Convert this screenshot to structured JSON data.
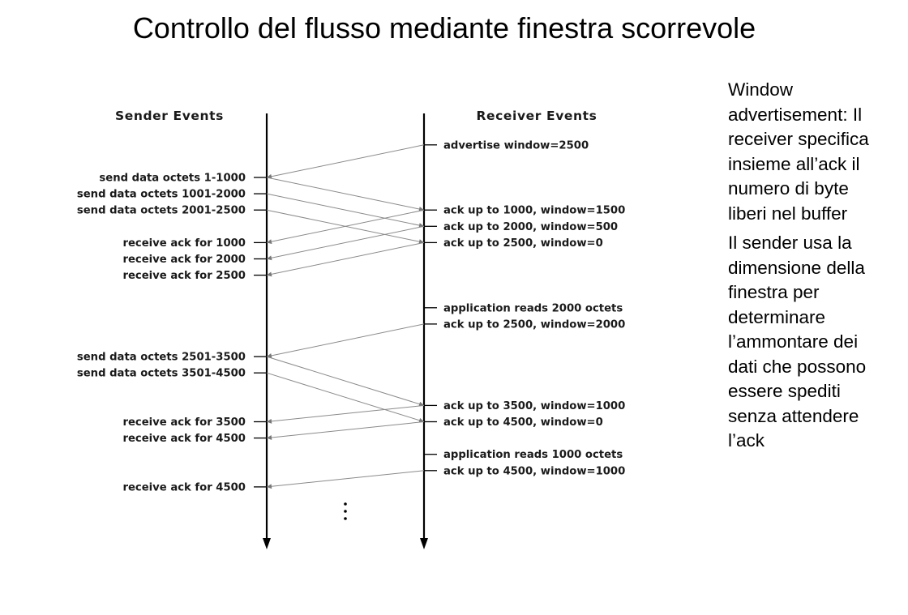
{
  "title": "Controllo del flusso mediante finestra scorrevole",
  "diagram": {
    "sender_header": "Sender Events",
    "receiver_header": "Receiver Events",
    "sender_events": [
      {
        "id": "s1",
        "text": "send data octets 1-1000",
        "row": 0
      },
      {
        "id": "s2",
        "text": "send data octets 1001-2000",
        "row": 1
      },
      {
        "id": "s3",
        "text": "send data octets 2001-2500",
        "row": 2
      },
      {
        "id": "s4",
        "text": "receive ack for 1000",
        "row": 4
      },
      {
        "id": "s5",
        "text": "receive ack for 2000",
        "row": 5
      },
      {
        "id": "s6",
        "text": "receive ack for 2500",
        "row": 6
      },
      {
        "id": "s7",
        "text": "send data octets 2501-3500",
        "row": 11
      },
      {
        "id": "s8",
        "text": "send data octets 3501-4500",
        "row": 12
      },
      {
        "id": "s9",
        "text": "receive ack for 3500",
        "row": 15
      },
      {
        "id": "s10",
        "text": "receive ack for 4500",
        "row": 16
      },
      {
        "id": "s11",
        "text": "receive ack for 4500",
        "row": 19
      }
    ],
    "receiver_events": [
      {
        "id": "r0",
        "text": "advertise window=2500",
        "row": -2
      },
      {
        "id": "r1",
        "text": "ack up to 1000, window=1500",
        "row": 2
      },
      {
        "id": "r2",
        "text": "ack up to 2000, window=500",
        "row": 3
      },
      {
        "id": "r3",
        "text": "ack up to 2500, window=0",
        "row": 4
      },
      {
        "id": "r4",
        "text": "application reads 2000 octets",
        "row": 8
      },
      {
        "id": "r5",
        "text": "ack up to 2500, window=2000",
        "row": 9
      },
      {
        "id": "r6",
        "text": "ack up to 3500, window=1000",
        "row": 14
      },
      {
        "id": "r7",
        "text": "ack up to 4500, window=0",
        "row": 15
      },
      {
        "id": "r8",
        "text": "application reads 1000 octets",
        "row": 17
      },
      {
        "id": "r9",
        "text": "ack up to 4500, window=1000",
        "row": 18
      }
    ],
    "messages": [
      {
        "from": "r0",
        "to": "s1"
      },
      {
        "from": "s1",
        "to": "r1"
      },
      {
        "from": "s2",
        "to": "r2"
      },
      {
        "from": "s3",
        "to": "r3"
      },
      {
        "from": "r1",
        "to": "s4"
      },
      {
        "from": "r2",
        "to": "s5"
      },
      {
        "from": "r3",
        "to": "s6"
      },
      {
        "from": "r5",
        "to": "s7"
      },
      {
        "from": "s7",
        "to": "r6"
      },
      {
        "from": "s8",
        "to": "r7"
      },
      {
        "from": "r6",
        "to": "s9"
      },
      {
        "from": "r7",
        "to": "s10"
      },
      {
        "from": "r9",
        "to": "s11"
      }
    ]
  },
  "side_text": {
    "paragraph1": "Window advertisement: Il receiver specifica insieme all’ack il numero di byte liberi nel buffer",
    "paragraph2": "Il sender usa la dimensione della finestra per determinare l’ammontare dei dati che possono essere spediti senza attendere l’ack"
  },
  "colors": {
    "timeline": "#000000",
    "message_line": "#8a8a8a",
    "text": "#1a1a1a"
  }
}
